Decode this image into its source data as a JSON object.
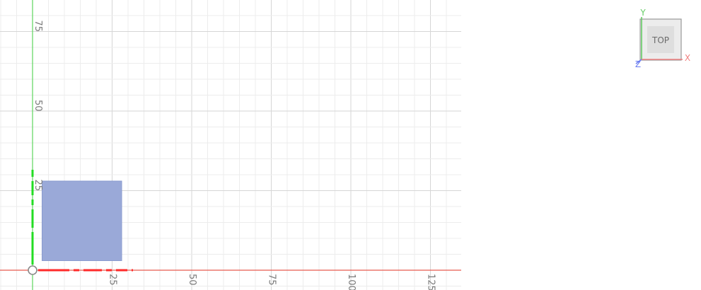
{
  "viewport": {
    "grid": "on",
    "x_axis_ticks": [
      "25",
      "50",
      "75",
      "100",
      "125"
    ],
    "y_axis_ticks": [
      "25",
      "50",
      "75"
    ],
    "colors": {
      "background": "#ffffff",
      "grid_minor": "#ececec",
      "grid_major": "#d6d6d6",
      "x_axis": "#e85a4f",
      "y_axis": "#5cd65c",
      "sketch_x_highlight": "#ff2a2a",
      "sketch_y_highlight": "#22dd22",
      "body_fill": "#9aa9d8",
      "body_stroke": "#8a9bcf"
    },
    "body": {
      "shape": "rectangle",
      "x_range": [
        3,
        28
      ],
      "y_range": [
        3,
        28
      ]
    }
  },
  "view_cube": {
    "face_label": "TOP",
    "axis_labels": {
      "x": "X",
      "y": "Y",
      "z": "Z"
    },
    "colors": {
      "x": "#f08080",
      "y": "#66cc66",
      "z": "#6a7cf0"
    }
  }
}
